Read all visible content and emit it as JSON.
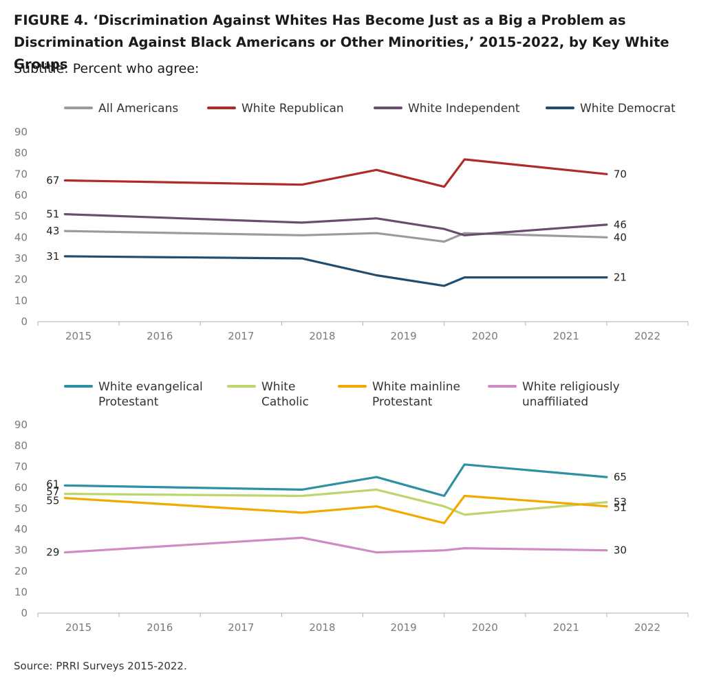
{
  "title": "FIGURE 4.  ‘Discrimination Against Whites Has Become Just as a Big a Problem as Discrimination Against Black Americans or Other Minorities,’ 2015-2022, by Key White Groups",
  "subtitle": "Subtitle: Percent who agree:",
  "source": "Source: PRRI Surveys 2015-2022.",
  "colors": {
    "all_americans": "#9b9b9b",
    "white_republican": "#b02a2a",
    "white_independent": "#6a4c6e",
    "white_democrat": "#1f4e72",
    "white_evangelical": "#2f8fa3",
    "white_catholic": "#bcd66c",
    "white_mainline": "#f2a900",
    "white_unaffiliated": "#cf8bc4"
  },
  "chart_data": [
    {
      "type": "line",
      "title": "",
      "x_tick_labels": [
        "2015",
        "2016",
        "2017",
        "2018",
        "2019",
        "2020",
        "2021",
        "2022"
      ],
      "ylim": [
        0,
        90
      ],
      "y_ticks": [
        "0",
        "10",
        "20",
        "30",
        "40",
        "50",
        "60",
        "70",
        "80",
        "90"
      ],
      "legend_placement": "top",
      "grid": false,
      "x": [
        "2015-05",
        "2018-04",
        "2019-03",
        "2020-01",
        "2020-04",
        "2022-01"
      ],
      "series": [
        {
          "name": "All Americans",
          "color_key": "all_americans",
          "values": [
            43,
            41,
            42,
            38,
            42,
            40
          ],
          "start_label": "43",
          "end_label": "40"
        },
        {
          "name": "White Republican",
          "color_key": "white_republican",
          "values": [
            67,
            65,
            72,
            64,
            77,
            70
          ],
          "start_label": "67",
          "end_label": "70"
        },
        {
          "name": "White Independent",
          "color_key": "white_independent",
          "values": [
            51,
            47,
            49,
            44,
            41,
            46
          ],
          "start_label": "51",
          "end_label": "46"
        },
        {
          "name": "White Democrat",
          "color_key": "white_democrat",
          "values": [
            31,
            30,
            22,
            17,
            21,
            21
          ],
          "start_label": "31",
          "end_label": "21"
        }
      ]
    },
    {
      "type": "line",
      "title": "",
      "x_tick_labels": [
        "2015",
        "2016",
        "2017",
        "2018",
        "2019",
        "2020",
        "2021",
        "2022"
      ],
      "ylim": [
        0,
        90
      ],
      "y_ticks": [
        "0",
        "10",
        "20",
        "30",
        "40",
        "50",
        "60",
        "70",
        "80",
        "90"
      ],
      "legend_placement": "top",
      "grid": false,
      "x": [
        "2015-05",
        "2018-04",
        "2019-03",
        "2020-01",
        "2020-04",
        "2022-01"
      ],
      "series": [
        {
          "name_lines": [
            "White evangelical",
            "Protestant"
          ],
          "color_key": "white_evangelical",
          "values": [
            61,
            59,
            65,
            56,
            71,
            65
          ],
          "start_label": "61",
          "end_label": "65"
        },
        {
          "name_lines": [
            "White",
            "Catholic"
          ],
          "color_key": "white_catholic",
          "values": [
            57,
            56,
            59,
            51,
            47,
            53
          ],
          "start_label": "57",
          "end_label": "53"
        },
        {
          "name_lines": [
            "White mainline",
            "Protestant"
          ],
          "color_key": "white_mainline",
          "values": [
            55,
            48,
            51,
            43,
            56,
            51
          ],
          "start_label": "55",
          "end_label": "51"
        },
        {
          "name_lines": [
            "White religiously",
            "unaffiliated"
          ],
          "color_key": "white_unaffiliated",
          "values": [
            29,
            36,
            29,
            30,
            31,
            30
          ],
          "start_label": "29",
          "end_label": "30"
        }
      ]
    }
  ]
}
